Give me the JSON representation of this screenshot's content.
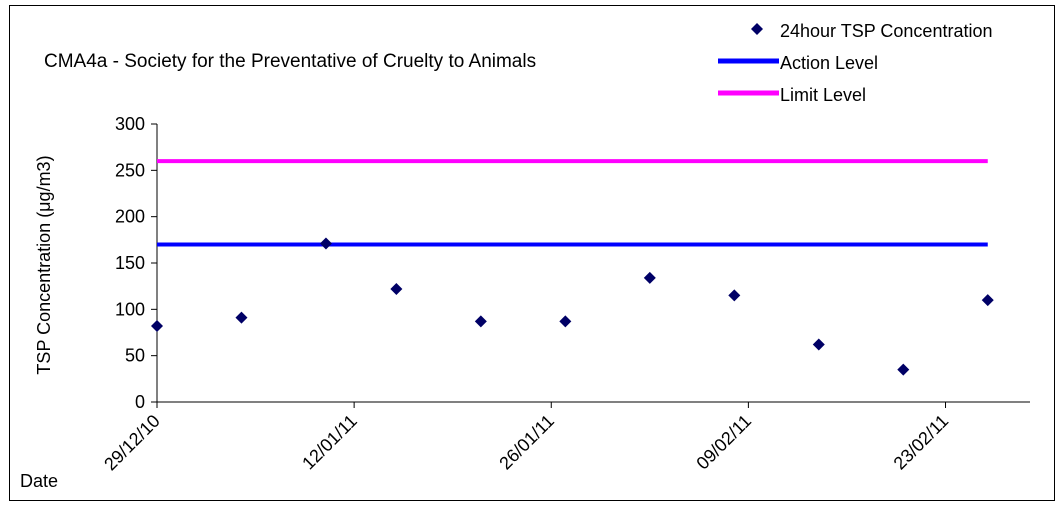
{
  "colors": {
    "marker": "#000066",
    "action_line": "#0000ff",
    "limit_line": "#ff00ff",
    "axis": "#000000",
    "background": "#ffffff"
  },
  "chart_data": {
    "type": "scatter",
    "title": "CMA4a - Society for the Preventative  of Cruelty to Animals",
    "xlabel": "Date",
    "ylabel": "TSP Concentration (μg/m3)",
    "ylim": [
      0,
      300
    ],
    "yticks": [
      0,
      50,
      100,
      150,
      200,
      250,
      300
    ],
    "xlim": [
      "2010-12-29",
      "2011-03-01"
    ],
    "xticks": [
      {
        "date": "2010-12-29",
        "label": "29/12/10"
      },
      {
        "date": "2011-01-12",
        "label": "12/01/11"
      },
      {
        "date": "2011-01-26",
        "label": "26/01/11"
      },
      {
        "date": "2011-02-09",
        "label": "09/02/11"
      },
      {
        "date": "2011-02-23",
        "label": "23/02/11"
      }
    ],
    "grid": false,
    "legend_position": "top-right",
    "series": [
      {
        "name": "24hour TSP Concentration",
        "kind": "marker",
        "marker": "diamond",
        "points": [
          {
            "x": "2010-12-29",
            "y": 82
          },
          {
            "x": "2011-01-04",
            "y": 91
          },
          {
            "x": "2011-01-10",
            "y": 171
          },
          {
            "x": "2011-01-15",
            "y": 122
          },
          {
            "x": "2011-01-21",
            "y": 87
          },
          {
            "x": "2011-01-27",
            "y": 87
          },
          {
            "x": "2011-02-02",
            "y": 134
          },
          {
            "x": "2011-02-08",
            "y": 115
          },
          {
            "x": "2011-02-14",
            "y": 62
          },
          {
            "x": "2011-02-20",
            "y": 35
          },
          {
            "x": "2011-02-26",
            "y": 110
          }
        ]
      },
      {
        "name": "Action Level",
        "kind": "line",
        "points": [
          {
            "x": "2010-12-29",
            "y": 170
          },
          {
            "x": "2011-02-26",
            "y": 170
          }
        ]
      },
      {
        "name": "Limit Level",
        "kind": "line",
        "points": [
          {
            "x": "2010-12-29",
            "y": 260
          },
          {
            "x": "2011-02-26",
            "y": 260
          }
        ]
      }
    ]
  }
}
